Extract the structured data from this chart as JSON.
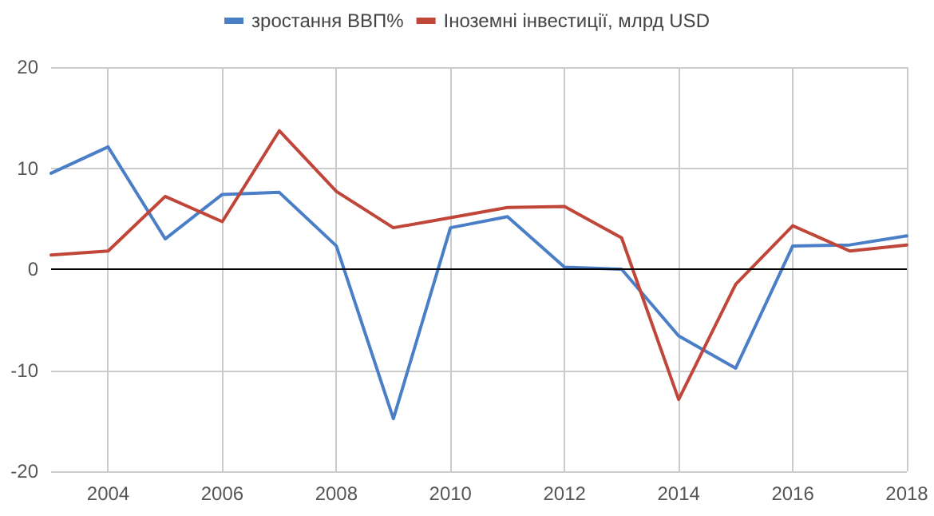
{
  "chart_data": {
    "type": "line",
    "x": [
      2003,
      2004,
      2005,
      2006,
      2007,
      2008,
      2009,
      2010,
      2011,
      2012,
      2013,
      2014,
      2015,
      2016,
      2017,
      2018
    ],
    "series": [
      {
        "name": "зростання ВВП%",
        "color": "#4a7fc7",
        "values": [
          9.5,
          12.1,
          3.0,
          7.4,
          7.6,
          2.3,
          -14.8,
          4.1,
          5.2,
          0.2,
          0.0,
          -6.6,
          -9.8,
          2.3,
          2.4,
          3.3
        ]
      },
      {
        "name": "Іноземні інвестиції, млрд USD",
        "color": "#c0463a",
        "values": [
          1.4,
          1.8,
          7.2,
          4.7,
          13.7,
          7.7,
          4.1,
          5.1,
          6.1,
          6.2,
          3.1,
          -12.9,
          -1.5,
          4.3,
          1.8,
          2.4
        ]
      }
    ],
    "xlim": [
      2003,
      2018
    ],
    "xticks": [
      2004,
      2006,
      2008,
      2010,
      2012,
      2014,
      2016,
      2018
    ],
    "ylim": [
      -20,
      20
    ],
    "yticks": [
      -20,
      -10,
      0,
      10,
      20
    ],
    "ref_lines": [
      {
        "axis": "y",
        "value": 0,
        "color": "#000000"
      }
    ],
    "grid": true,
    "legend": "top",
    "marker": "none",
    "line_style": "solid"
  }
}
